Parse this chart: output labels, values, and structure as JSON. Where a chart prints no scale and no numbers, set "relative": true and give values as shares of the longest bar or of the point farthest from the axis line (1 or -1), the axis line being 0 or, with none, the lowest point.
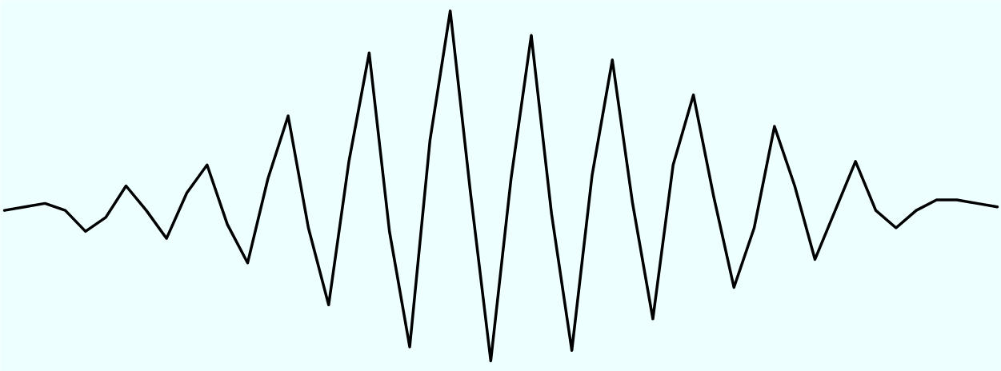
{
  "chart_data": {
    "type": "line",
    "relative": true,
    "categories": [
      null,
      null,
      null,
      null,
      null,
      null,
      null,
      null,
      null,
      null,
      null,
      null,
      null,
      null,
      null,
      null,
      null,
      null,
      null,
      null,
      null,
      null,
      null,
      null,
      null,
      null,
      null,
      null,
      null,
      null,
      null,
      null,
      null,
      null,
      null,
      null,
      null,
      null,
      null,
      null,
      null,
      null,
      null,
      null,
      null,
      null,
      null,
      null,
      null,
      null
    ],
    "series": [
      {
        "color": "#000000",
        "values": [
          0.43,
          0.44,
          0.45,
          0.43,
          0.37,
          0.41,
          0.5,
          0.43,
          0.35,
          0.48,
          0.56,
          0.39,
          0.28,
          0.52,
          0.7,
          0.38,
          0.16,
          0.57,
          0.88,
          0.37,
          0.04,
          0.63,
          1.0,
          0.48,
          0.0,
          0.52,
          0.93,
          0.42,
          0.03,
          0.53,
          0.86,
          0.45,
          0.12,
          0.56,
          0.76,
          0.47,
          0.21,
          0.38,
          0.67,
          0.5,
          0.29,
          0.43,
          0.57,
          0.43,
          0.38,
          0.43,
          0.46,
          0.46,
          0.45,
          0.44
        ]
      }
    ]
  }
}
